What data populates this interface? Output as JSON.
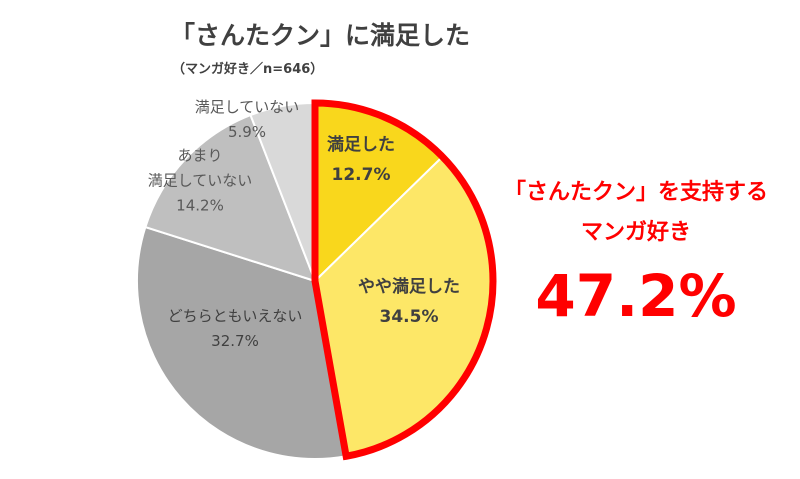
{
  "header": {
    "title": "「さんたクン」に満足した",
    "subtitle": "（マンガ好き／n=646）"
  },
  "highlight": {
    "line1": "「さんたクン」を支持する",
    "line2": "マンガ好き",
    "total": "47.2%",
    "color": "#ff0000"
  },
  "chart_data": {
    "type": "pie",
    "start_angle_deg": 0,
    "direction": "clockwise",
    "slices": [
      {
        "label": "満足した",
        "value": 12.7,
        "display": "12.7%",
        "color": "#f9d71c",
        "text_color": "#404040",
        "bold": true
      },
      {
        "label": "やや満足した",
        "value": 34.5,
        "display": "34.5%",
        "color": "#fde767",
        "text_color": "#404040",
        "bold": true
      },
      {
        "label": "どちらともいえない",
        "value": 32.7,
        "display": "32.7%",
        "color": "#a6a6a6",
        "text_color": "#404040",
        "bold": false
      },
      {
        "label": "あまり\n満足していない",
        "value": 14.2,
        "display": "14.2%",
        "color": "#bfbfbf",
        "text_color": "#595959",
        "bold": false
      },
      {
        "label": "満足していない",
        "value": 5.9,
        "display": "5.9%",
        "color": "#d9d9d9",
        "text_color": "#595959",
        "bold": false
      }
    ],
    "highlighted_slices": [
      "満足した",
      "やや満足した"
    ]
  }
}
